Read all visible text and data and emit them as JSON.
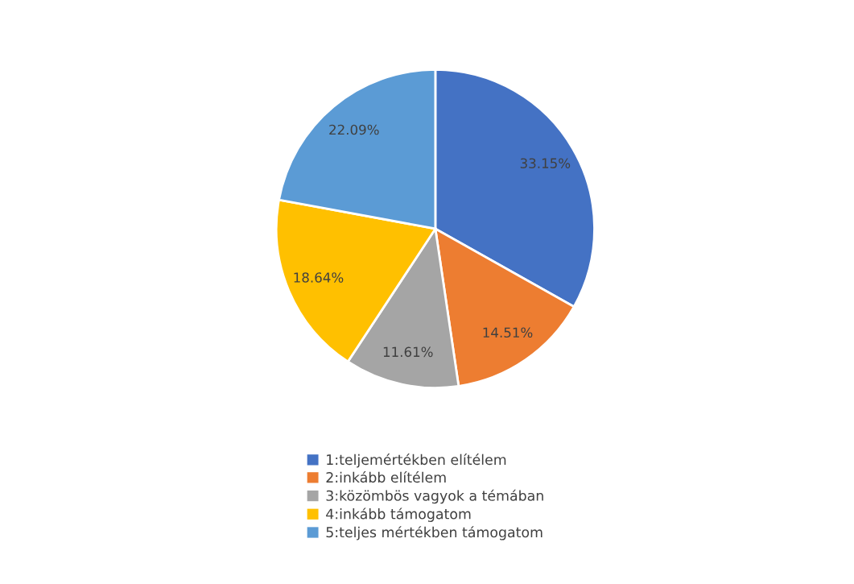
{
  "chart_data": {
    "type": "pie",
    "categories": [
      "1:teljemértékben elítélem",
      "2:inkább elítélem",
      "3:közömbös vagyok a témában",
      "4:inkább támogatom",
      "5:teljes mértékben támogatom"
    ],
    "values": [
      33.15,
      14.51,
      11.61,
      18.64,
      22.09
    ],
    "value_labels": [
      "33.15%",
      "14.51%",
      "11.61%",
      "18.64%",
      "22.09%"
    ],
    "colors": [
      "#4472c4",
      "#ed7d31",
      "#a5a5a5",
      "#ffc000",
      "#5b9bd5"
    ],
    "legend": "bottom"
  }
}
